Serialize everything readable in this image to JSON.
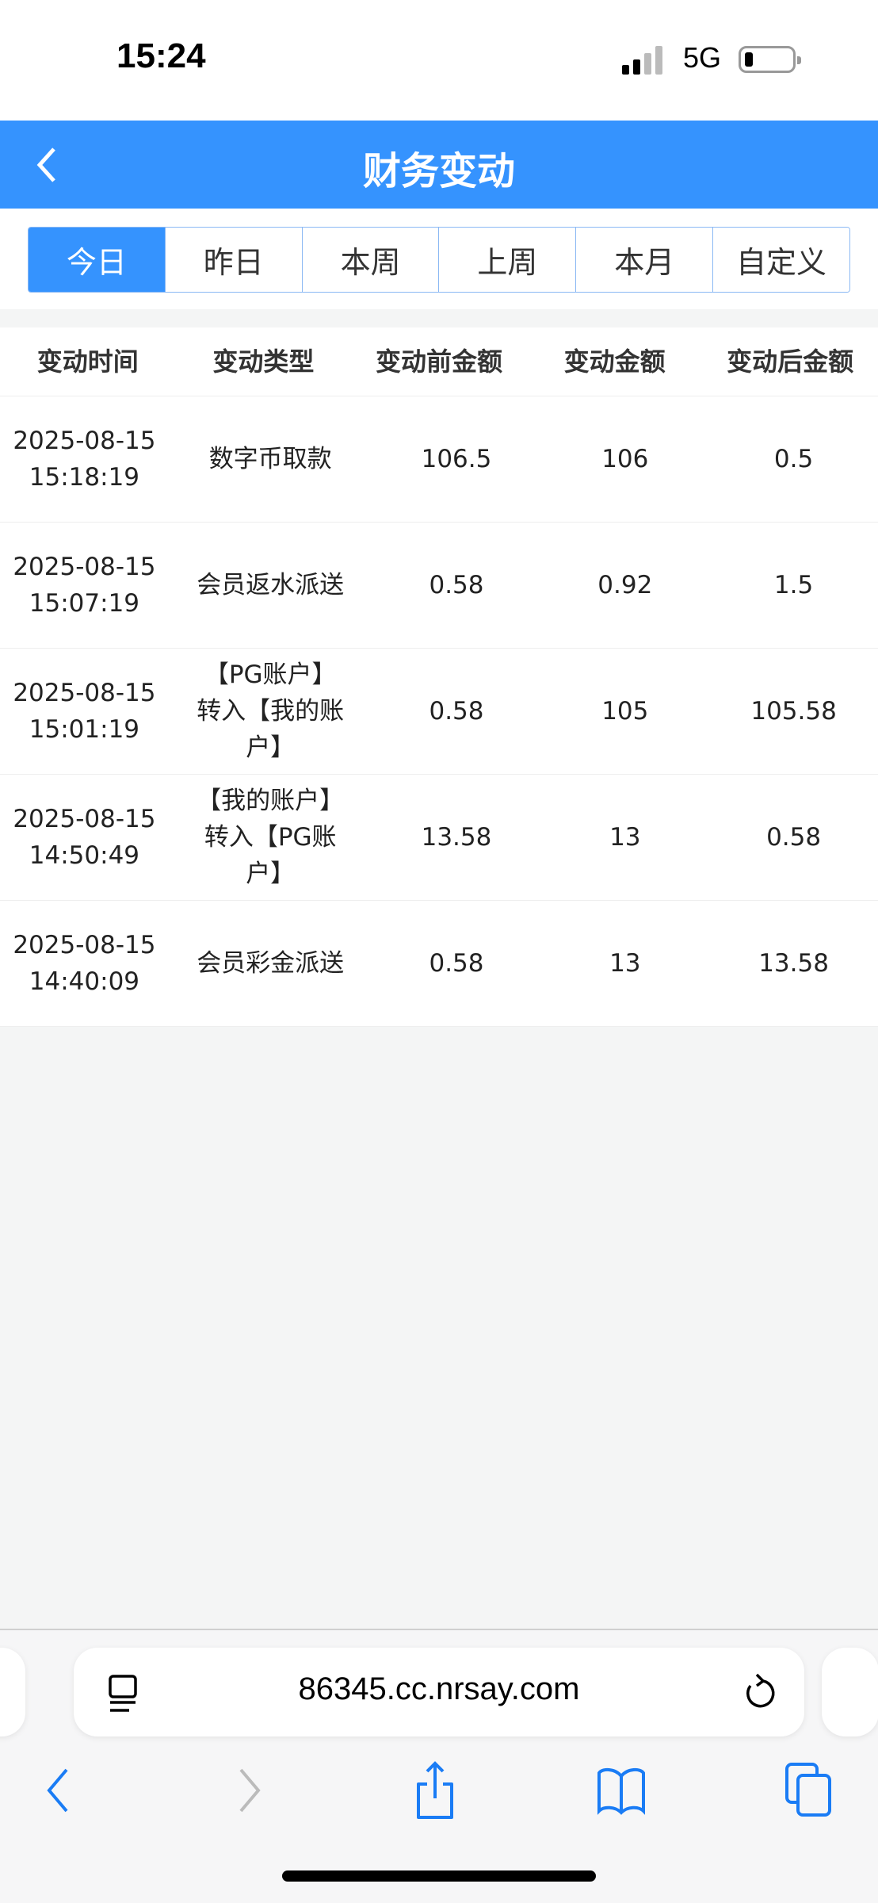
{
  "status_bar": {
    "time": "15:24",
    "network": "5G"
  },
  "header": {
    "title": "财务变动",
    "back_icon": "chevron-left-icon"
  },
  "tabs": [
    {
      "label": "今日",
      "active": true
    },
    {
      "label": "昨日"
    },
    {
      "label": "本周"
    },
    {
      "label": "上周"
    },
    {
      "label": "本月"
    },
    {
      "label": "自定义"
    }
  ],
  "table": {
    "columns": [
      "变动时间",
      "变动类型",
      "变动前金额",
      "变动金额",
      "变动后金额"
    ],
    "rows": [
      {
        "date": "2025-08-15",
        "time": "15:18:19",
        "type": "数字币取款",
        "before": "106.5",
        "amount": "106",
        "after": "0.5"
      },
      {
        "date": "2025-08-15",
        "time": "15:07:19",
        "type": "会员返水派送",
        "before": "0.58",
        "amount": "0.92",
        "after": "1.5"
      },
      {
        "date": "2025-08-15",
        "time": "15:01:19",
        "type": "【PG账户】转入【我的账户】",
        "before": "0.58",
        "amount": "105",
        "after": "105.58"
      },
      {
        "date": "2025-08-15",
        "time": "14:50:49",
        "type": "【我的账户】转入【PG账户】",
        "before": "13.58",
        "amount": "13",
        "after": "0.58"
      },
      {
        "date": "2025-08-15",
        "time": "14:40:09",
        "type": "会员彩金派送",
        "before": "0.58",
        "amount": "13",
        "after": "13.58"
      }
    ]
  },
  "browser": {
    "url": "86345.cc.nrsay.com",
    "accent": "#1a7cf5"
  },
  "colors": {
    "primary": "#3593fe"
  }
}
